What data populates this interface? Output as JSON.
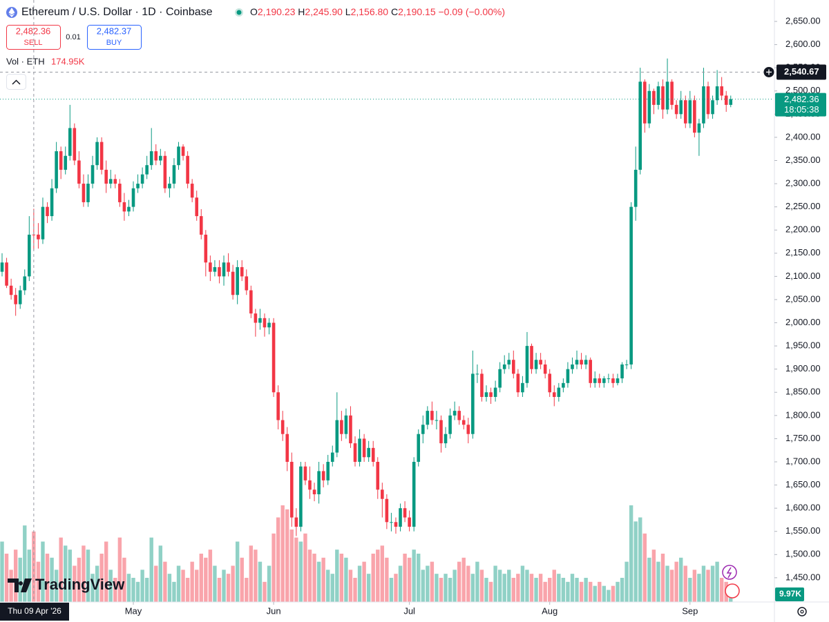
{
  "header": {
    "symbol": "Ethereum / U.S. Dollar · 1D · Coinbase",
    "ohlc": [
      {
        "k": "O",
        "v": "2,190.23"
      },
      {
        "k": "H",
        "v": "2,245.90"
      },
      {
        "k": "L",
        "v": "2,156.80"
      },
      {
        "k": "C",
        "v": "2,190.15"
      }
    ],
    "change": "−0.09 (−0.00%)"
  },
  "trade": {
    "sell_price": "2,482.36",
    "sell": "SELL",
    "spread": "0.01",
    "buy_price": "2,482.37",
    "buy": "BUY"
  },
  "volume_legend": {
    "label": "Vol · ETH",
    "value": "174.95K"
  },
  "brand": "TradingView",
  "chart_data": {
    "type": "candlestick",
    "up_color": "#089981",
    "down_color": "#f23645",
    "open": [
      2110,
      2130,
      2080,
      2060,
      2040,
      2070,
      2100,
      2190.23,
      2190.15,
      2180,
      2250,
      2230,
      2290,
      2370,
      2330,
      2360,
      2420,
      2350,
      2300,
      2260,
      2300,
      2340,
      2390,
      2330,
      2300,
      2310,
      2300,
      2260,
      2240,
      2250,
      2290,
      2300,
      2320,
      2340,
      2370,
      2350,
      2360,
      2290,
      2300,
      2340,
      2380,
      2360,
      2300,
      2270,
      2230,
      2190,
      2130,
      2110,
      2120,
      2100,
      2130,
      2110,
      2060,
      2120,
      2100,
      2070,
      2020,
      2000,
      2010,
      1990,
      2000,
      1850,
      1790,
      1760,
      1700,
      1580,
      1560,
      1690,
      1660,
      1640,
      1630,
      1680,
      1660,
      1700,
      1720,
      1790,
      1760,
      1800,
      1740,
      1700,
      1750,
      1710,
      1730,
      1700,
      1640,
      1620,
      1570,
      1570,
      1560,
      1600,
      1580,
      1560,
      1700,
      1760,
      1780,
      1810,
      1790,
      1790,
      1740,
      1760,
      1800,
      1810,
      1790,
      1780,
      1760,
      1890,
      1890,
      1840,
      1850,
      1840,
      1860,
      1900,
      1910,
      1920,
      1890,
      1850,
      1870,
      1950,
      1900,
      1920,
      1910,
      1890,
      1850,
      1840,
      1860,
      1870,
      1900,
      1910,
      1920,
      1910,
      1920,
      1870,
      1880,
      1870,
      1880,
      1880,
      1870,
      1880,
      1910,
      1910,
      2250,
      2330,
      2520,
      2430,
      2500,
      2470,
      2510,
      2460,
      2520,
      2470,
      2450,
      2480,
      2430,
      2480,
      2410,
      2430,
      2510,
      2450,
      2480,
      2510,
      2490,
      2470
    ],
    "high": [
      2150,
      2140,
      2095,
      2075,
      2080,
      2115,
      2230,
      2245.9,
      2215,
      2270,
      2260,
      2310,
      2390,
      2380,
      2380,
      2470,
      2430,
      2370,
      2320,
      2320,
      2360,
      2400,
      2400,
      2350,
      2330,
      2320,
      2310,
      2280,
      2265,
      2305,
      2320,
      2335,
      2360,
      2420,
      2385,
      2375,
      2370,
      2315,
      2355,
      2390,
      2385,
      2370,
      2310,
      2285,
      2245,
      2200,
      2145,
      2135,
      2135,
      2145,
      2150,
      2125,
      2135,
      2135,
      2115,
      2080,
      2030,
      2030,
      2020,
      2010,
      2010,
      1865,
      1810,
      1775,
      1720,
      1600,
      1700,
      1700,
      1690,
      1655,
      1700,
      1695,
      1715,
      1735,
      1850,
      1810,
      1815,
      1820,
      1755,
      1770,
      1760,
      1745,
      1745,
      1710,
      1655,
      1630,
      1590,
      1580,
      1610,
      1615,
      1595,
      1710,
      1770,
      1800,
      1820,
      1830,
      1810,
      1800,
      1775,
      1815,
      1830,
      1820,
      1800,
      1795,
      1940,
      1910,
      1900,
      1865,
      1860,
      1875,
      1915,
      1930,
      1935,
      1940,
      1900,
      1885,
      1980,
      1955,
      1935,
      1935,
      1920,
      1900,
      1865,
      1870,
      1880,
      1915,
      1925,
      1940,
      1935,
      1930,
      1925,
      1895,
      1890,
      1885,
      1890,
      1890,
      1890,
      1915,
      1920,
      2260,
      2380,
      2550,
      2525,
      2515,
      2505,
      2520,
      2525,
      2570,
      2525,
      2480,
      2500,
      2490,
      2500,
      2490,
      2440,
      2550,
      2520,
      2490,
      2545,
      2530,
      2500,
      2490
    ],
    "low": [
      2100,
      2075,
      2050,
      2015,
      2030,
      2060,
      2090,
      2156.8,
      2160,
      2170,
      2215,
      2220,
      2280,
      2310,
      2320,
      2350,
      2340,
      2290,
      2250,
      2250,
      2290,
      2330,
      2320,
      2280,
      2290,
      2290,
      2250,
      2220,
      2230,
      2240,
      2280,
      2290,
      2310,
      2330,
      2340,
      2340,
      2280,
      2270,
      2290,
      2330,
      2350,
      2290,
      2260,
      2220,
      2180,
      2100,
      2090,
      2100,
      2085,
      2080,
      2100,
      2050,
      2040,
      2090,
      2060,
      2010,
      1970,
      1985,
      1970,
      1975,
      1840,
      1770,
      1745,
      1680,
      1560,
      1540,
      1550,
      1650,
      1620,
      1615,
      1610,
      1645,
      1650,
      1690,
      1710,
      1745,
      1750,
      1730,
      1690,
      1690,
      1700,
      1700,
      1690,
      1620,
      1580,
      1555,
      1550,
      1545,
      1550,
      1570,
      1550,
      1550,
      1690,
      1740,
      1770,
      1780,
      1770,
      1720,
      1730,
      1750,
      1790,
      1780,
      1770,
      1740,
      1750,
      1870,
      1830,
      1830,
      1825,
      1830,
      1850,
      1890,
      1900,
      1880,
      1840,
      1840,
      1860,
      1890,
      1890,
      1900,
      1880,
      1840,
      1820,
      1830,
      1850,
      1860,
      1890,
      1900,
      1900,
      1900,
      1860,
      1860,
      1860,
      1860,
      1870,
      1860,
      1865,
      1870,
      1900,
      1900,
      2220,
      2320,
      2410,
      2420,
      2450,
      2460,
      2440,
      2450,
      2460,
      2440,
      2440,
      2420,
      2420,
      2400,
      2360,
      2420,
      2440,
      2440,
      2470,
      2480,
      2455,
      2465
    ],
    "close": [
      2130,
      2080,
      2060,
      2040,
      2070,
      2100,
      2190,
      2190.15,
      2180,
      2250,
      2230,
      2290,
      2370,
      2330,
      2360,
      2420,
      2350,
      2300,
      2260,
      2300,
      2340,
      2390,
      2330,
      2300,
      2310,
      2300,
      2260,
      2240,
      2250,
      2290,
      2300,
      2320,
      2340,
      2370,
      2350,
      2360,
      2290,
      2300,
      2340,
      2380,
      2360,
      2300,
      2270,
      2230,
      2190,
      2130,
      2110,
      2120,
      2100,
      2130,
      2110,
      2060,
      2120,
      2100,
      2070,
      2020,
      2000,
      2010,
      1990,
      2000,
      1850,
      1790,
      1760,
      1700,
      1580,
      1560,
      1690,
      1660,
      1640,
      1630,
      1680,
      1660,
      1700,
      1720,
      1790,
      1760,
      1800,
      1740,
      1700,
      1750,
      1710,
      1730,
      1700,
      1640,
      1620,
      1570,
      1570,
      1560,
      1600,
      1580,
      1560,
      1700,
      1760,
      1780,
      1810,
      1790,
      1790,
      1740,
      1760,
      1800,
      1810,
      1790,
      1780,
      1760,
      1890,
      1890,
      1840,
      1850,
      1840,
      1860,
      1900,
      1910,
      1920,
      1890,
      1850,
      1870,
      1950,
      1900,
      1920,
      1910,
      1890,
      1850,
      1840,
      1860,
      1870,
      1900,
      1910,
      1920,
      1910,
      1920,
      1870,
      1880,
      1870,
      1880,
      1880,
      1870,
      1880,
      1910,
      1910,
      2250,
      2330,
      2520,
      2430,
      2500,
      2470,
      2510,
      2460,
      2520,
      2470,
      2450,
      2480,
      2430,
      2480,
      2410,
      2430,
      2510,
      2450,
      2480,
      2510,
      2490,
      2470,
      2482.36
    ],
    "volume": [
      150,
      120,
      80,
      130,
      110,
      190,
      130,
      174.95,
      100,
      150,
      120,
      110,
      80,
      160,
      140,
      130,
      90,
      110,
      140,
      130,
      70,
      90,
      120,
      150,
      80,
      60,
      160,
      110,
      70,
      60,
      50,
      80,
      60,
      160,
      90,
      140,
      100,
      70,
      50,
      90,
      80,
      60,
      100,
      80,
      120,
      110,
      130,
      90,
      60,
      80,
      70,
      90,
      150,
      110,
      60,
      140,
      130,
      100,
      50,
      90,
      170,
      210,
      240,
      230,
      180,
      160,
      150,
      170,
      130,
      120,
      100,
      110,
      80,
      70,
      130,
      120,
      110,
      80,
      60,
      90,
      100,
      70,
      120,
      130,
      140,
      110,
      60,
      70,
      90,
      120,
      110,
      130,
      120,
      80,
      90,
      100,
      70,
      60,
      70,
      60,
      80,
      100,
      110,
      90,
      70,
      100,
      80,
      60,
      50,
      90,
      80,
      70,
      80,
      60,
      70,
      90,
      80,
      70,
      60,
      70,
      50,
      60,
      80,
      70,
      60,
      50,
      70,
      60,
      50,
      60,
      50,
      40,
      50,
      40,
      30,
      40,
      50,
      60,
      100,
      240,
      200,
      210,
      170,
      110,
      130,
      100,
      120,
      90,
      80,
      100,
      110,
      90,
      60,
      80,
      70,
      90,
      80,
      90,
      100,
      60,
      50,
      9.97
    ],
    "volume_last_label": "9.97K",
    "xlim": [
      -0.46,
      170.5
    ],
    "xticks": [
      {
        "value": 29,
        "label": "May"
      },
      {
        "value": 60,
        "label": "Jun"
      },
      {
        "value": 90,
        "label": "Jul"
      },
      {
        "value": 121,
        "label": "Aug"
      },
      {
        "value": 152,
        "label": "Sep"
      }
    ],
    "crosshair": {
      "value": 7,
      "label": "Thu 09 Apr '26"
    },
    "ylim": [
      1397.7,
      2696.2
    ],
    "yticks": [
      {
        "value": 1450,
        "label": "1,450.00"
      },
      {
        "value": 1500,
        "label": "1,500.00"
      },
      {
        "value": 1550,
        "label": "1,550.00"
      },
      {
        "value": 1600,
        "label": "1,600.00"
      },
      {
        "value": 1650,
        "label": "1,650.00"
      },
      {
        "value": 1700,
        "label": "1,700.00"
      },
      {
        "value": 1750,
        "label": "1,750.00"
      },
      {
        "value": 1800,
        "label": "1,800.00"
      },
      {
        "value": 1850,
        "label": "1,850.00"
      },
      {
        "value": 1900,
        "label": "1,900.00"
      },
      {
        "value": 1950,
        "label": "1,950.00"
      },
      {
        "value": 2000,
        "label": "2,000.00"
      },
      {
        "value": 2050,
        "label": "2,050.00"
      },
      {
        "value": 2100,
        "label": "2,100.00"
      },
      {
        "value": 2150,
        "label": "2,150.00"
      },
      {
        "value": 2200,
        "label": "2,200.00"
      },
      {
        "value": 2250,
        "label": "2,250.00"
      },
      {
        "value": 2300,
        "label": "2,300.00"
      },
      {
        "value": 2350,
        "label": "2,350.00"
      },
      {
        "value": 2400,
        "label": "2,400.00"
      },
      {
        "value": 2450,
        "label": "2,450.00"
      },
      {
        "value": 2500,
        "label": "2,500.00"
      },
      {
        "value": 2550,
        "label": "2,550.00"
      },
      {
        "value": 2600,
        "label": "2,600.00"
      },
      {
        "value": 2650,
        "label": "2,650.00"
      }
    ],
    "price_line": {
      "value": 2540.67,
      "label": "2,540.67"
    },
    "last_price": {
      "value": 2482.36,
      "label": "2,482.36",
      "countdown": "18:05:38"
    },
    "grid": false
  }
}
